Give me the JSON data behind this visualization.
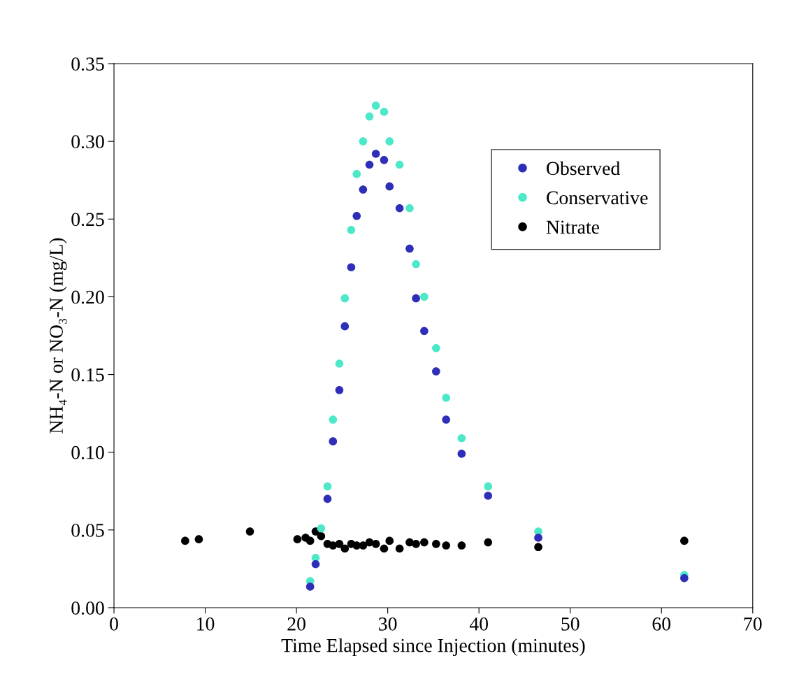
{
  "chart_data": {
    "type": "scatter",
    "xlabel": "Time Elapsed since Injection (minutes)",
    "ylabel": "NH₄-N or NO₃-N (mg/L)",
    "xlim": [
      0,
      70
    ],
    "xticks": [
      0,
      10,
      20,
      30,
      40,
      50,
      60,
      70
    ],
    "ylim": [
      0,
      0.35
    ],
    "yticks": [
      {
        "value": 0,
        "label": "0.00"
      },
      {
        "value": 0.05,
        "label": "0.05"
      },
      {
        "value": 0.1,
        "label": "0.10"
      },
      {
        "value": 0.15,
        "label": "0.15"
      },
      {
        "value": 0.2,
        "label": "0.20"
      },
      {
        "value": 0.25,
        "label": "0.25"
      },
      {
        "value": 0.3,
        "label": "0.30"
      },
      {
        "value": 0.35,
        "label": "0.35"
      }
    ],
    "grid": false,
    "legend": "top right",
    "marker": "circle",
    "series": [
      {
        "name": "Observed",
        "color": "#2e2eb8",
        "x": [
          21.5,
          22.1,
          23.4,
          24.0,
          24.7,
          25.3,
          26.0,
          26.6,
          27.3,
          28.0,
          28.7,
          29.6,
          30.2,
          31.3,
          32.4,
          33.1,
          34.0,
          35.3,
          36.4,
          38.1,
          41.0,
          46.5,
          62.5
        ],
        "values": [
          0.0135,
          0.028,
          0.07,
          0.107,
          0.14,
          0.181,
          0.219,
          0.252,
          0.269,
          0.285,
          0.292,
          0.288,
          0.271,
          0.257,
          0.231,
          0.199,
          0.178,
          0.152,
          0.121,
          0.099,
          0.072,
          0.045,
          0.019
        ]
      },
      {
        "name": "Conservative",
        "color": "#4de8c8",
        "x": [
          21.5,
          22.1,
          22.7,
          23.4,
          24.0,
          24.7,
          25.3,
          26.0,
          26.6,
          27.3,
          28.0,
          28.7,
          29.6,
          30.2,
          31.3,
          32.4,
          33.1,
          34.0,
          35.3,
          36.4,
          38.1,
          41.0,
          46.5,
          62.5
        ],
        "values": [
          0.017,
          0.032,
          0.051,
          0.078,
          0.121,
          0.157,
          0.199,
          0.243,
          0.279,
          0.3,
          0.316,
          0.323,
          0.319,
          0.3,
          0.285,
          0.257,
          0.221,
          0.2,
          0.167,
          0.135,
          0.109,
          0.078,
          0.049,
          0.021
        ]
      },
      {
        "name": "Nitrate",
        "color": "#000000",
        "x": [
          7.8,
          9.3,
          14.9,
          20.1,
          21.0,
          21.5,
          22.1,
          22.7,
          23.4,
          24.0,
          24.7,
          25.3,
          26.0,
          26.6,
          27.3,
          28.0,
          28.7,
          29.6,
          30.2,
          31.3,
          32.4,
          33.1,
          34.0,
          35.3,
          36.4,
          38.1,
          41.0,
          46.5,
          62.5
        ],
        "values": [
          0.043,
          0.044,
          0.049,
          0.044,
          0.045,
          0.043,
          0.049,
          0.046,
          0.041,
          0.04,
          0.041,
          0.038,
          0.041,
          0.04,
          0.04,
          0.042,
          0.041,
          0.038,
          0.043,
          0.038,
          0.042,
          0.041,
          0.042,
          0.041,
          0.04,
          0.04,
          0.042,
          0.039,
          0.043
        ]
      }
    ]
  }
}
